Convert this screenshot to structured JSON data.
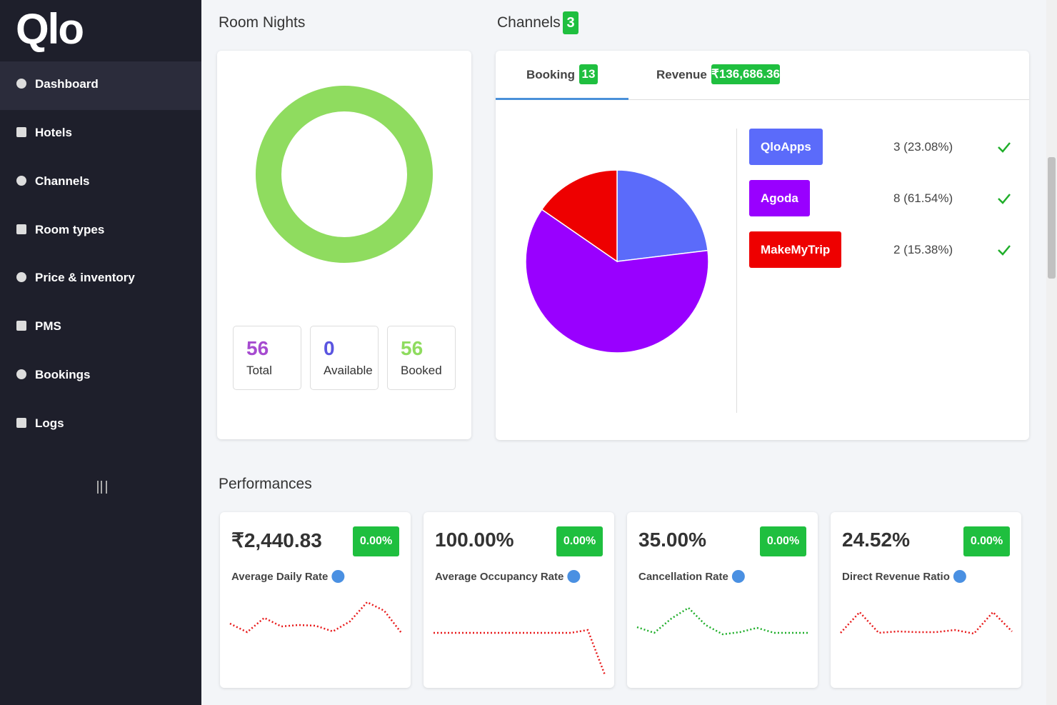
{
  "sidebar": {
    "logo": "Qlo",
    "menu": [
      "Dashboard",
      "Hotels",
      "Channels",
      "Room types",
      "Price & inventory",
      "PMS",
      "Bookings",
      "Logs"
    ]
  },
  "room_nights": {
    "title": "Room Nights",
    "color": "#8fdc5f",
    "stats": [
      {
        "value": 56,
        "label": "Total",
        "color": "#a64bd0"
      },
      {
        "value": 0,
        "label": "Available",
        "color": "#5a55e0"
      },
      {
        "value": 56,
        "label": "Booked",
        "color": "#8fdc5f"
      }
    ]
  },
  "channels": {
    "title": "Channels",
    "count": 3,
    "tabs": [
      {
        "label": "Booking",
        "badge": 13
      },
      {
        "label": "Revenue",
        "badge": "₹136,686.36"
      }
    ],
    "items": [
      {
        "name": "QloApps",
        "value": 3,
        "label": "3 (23.08%)",
        "color": "#5b6bfa"
      },
      {
        "name": "Agoda",
        "value": 8,
        "label": "8 (61.54%)",
        "color": "#9900ff"
      },
      {
        "name": "MakeMyTrip",
        "value": 2,
        "label": "2 (15.38%)",
        "color": "#ee0000"
      }
    ]
  },
  "performances": {
    "title": "Performances",
    "cards": [
      {
        "value": "₹2,440.83",
        "change": "0.00%",
        "label": "Average Daily Rate",
        "color": "#e8191a",
        "trend": [
          72,
          60,
          80,
          68,
          70,
          69,
          61,
          75,
          102,
          90,
          59
        ]
      },
      {
        "value": "100.00%",
        "change": "0.00%",
        "label": "Average Occupancy Rate",
        "color": "#e8191a",
        "trend": [
          59,
          59,
          59,
          59,
          59,
          59,
          59,
          59,
          59,
          63,
          0
        ]
      },
      {
        "value": "35.00%",
        "change": "0.00%",
        "label": "Cancellation Rate",
        "color": "#1fae2a",
        "trend": [
          67,
          59,
          79,
          94,
          70,
          57,
          60,
          66,
          59,
          59,
          59
        ]
      },
      {
        "value": "24.52%",
        "change": "0.00%",
        "label": "Direct Revenue Ratio",
        "color": "#e8191a",
        "trend": [
          59,
          88,
          59,
          61,
          60,
          60,
          63,
          58,
          88,
          61
        ]
      }
    ]
  }
}
